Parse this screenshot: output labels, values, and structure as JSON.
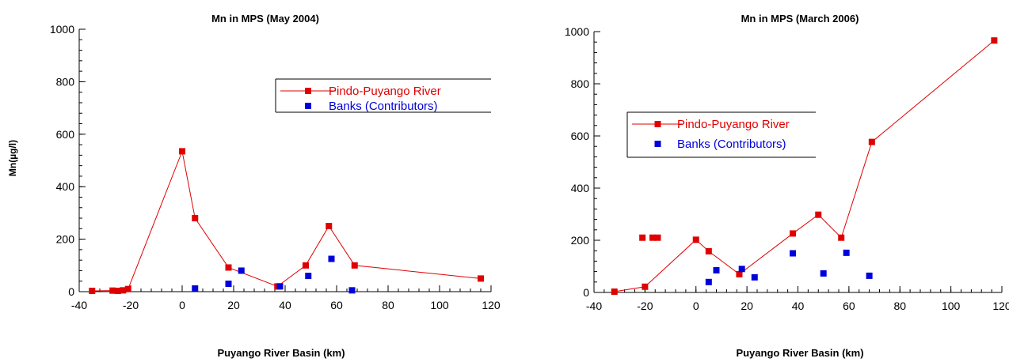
{
  "chart_data": [
    {
      "type": "line",
      "title": "Mn in MPS (May 2004)",
      "xlabel": "Puyango River Basin (km)",
      "ylabel": "Mn(µg/l)",
      "xlim": [
        -40,
        120
      ],
      "ylim": [
        0,
        1000
      ],
      "xticks": [
        -40,
        -20,
        0,
        20,
        40,
        60,
        80,
        100,
        120
      ],
      "yticks": [
        0,
        200,
        400,
        600,
        800,
        1000
      ],
      "grid": false,
      "legend_position": "top-right",
      "series": [
        {
          "name": "Pindo-Puyango River",
          "color": "#e00000",
          "marker": "square",
          "connected": true,
          "points": [
            [
              -35,
              3
            ],
            [
              -27,
              4
            ],
            [
              -25,
              3
            ],
            [
              -23,
              5
            ],
            [
              -21,
              10
            ],
            [
              0,
              535
            ],
            [
              5,
              280
            ],
            [
              18,
              92
            ],
            [
              37,
              20
            ],
            [
              48,
              100
            ],
            [
              57,
              250
            ],
            [
              67,
              100
            ],
            [
              116,
              50
            ]
          ]
        },
        {
          "name": "Banks (Contributors)",
          "color": "#0000dd",
          "marker": "square",
          "connected": false,
          "points": [
            [
              5,
              12
            ],
            [
              18,
              30
            ],
            [
              23,
              80
            ],
            [
              38,
              20
            ],
            [
              49,
              60
            ],
            [
              58,
              125
            ],
            [
              66,
              5
            ]
          ]
        }
      ]
    },
    {
      "type": "line",
      "title": "Mn in MPS (March 2006)",
      "xlabel": "Puyango River Basin (km)",
      "ylabel": "",
      "xlim": [
        -40,
        120
      ],
      "ylim": [
        0,
        1000
      ],
      "xticks": [
        -40,
        -20,
        0,
        20,
        40,
        60,
        80,
        100,
        120
      ],
      "yticks": [
        0,
        200,
        400,
        600,
        800,
        1000
      ],
      "grid": false,
      "legend_position": "left-middle",
      "series": [
        {
          "name": "Pindo-Puyango River",
          "color": "#e00000",
          "marker": "square",
          "connected": true,
          "points": [
            [
              -32,
              3
            ],
            [
              -20,
              22
            ],
            [
              0,
              202
            ],
            [
              5,
              158
            ],
            [
              17,
              70
            ],
            [
              38,
              226
            ],
            [
              48,
              298
            ],
            [
              57,
              210
            ],
            [
              69,
              577
            ],
            [
              117,
              966
            ]
          ]
        },
        {
          "name": "",
          "color": "#e00000",
          "marker": "square",
          "connected": false,
          "points": [
            [
              -21,
              210
            ],
            [
              -17,
              210
            ],
            [
              -15,
              210
            ]
          ]
        },
        {
          "name": "Banks (Contributors)",
          "color": "#0000dd",
          "marker": "square",
          "connected": false,
          "points": [
            [
              5,
              40
            ],
            [
              8,
              85
            ],
            [
              18,
              90
            ],
            [
              23,
              58
            ],
            [
              38,
              150
            ],
            [
              50,
              73
            ],
            [
              59,
              152
            ],
            [
              68,
              64
            ]
          ]
        }
      ]
    }
  ]
}
